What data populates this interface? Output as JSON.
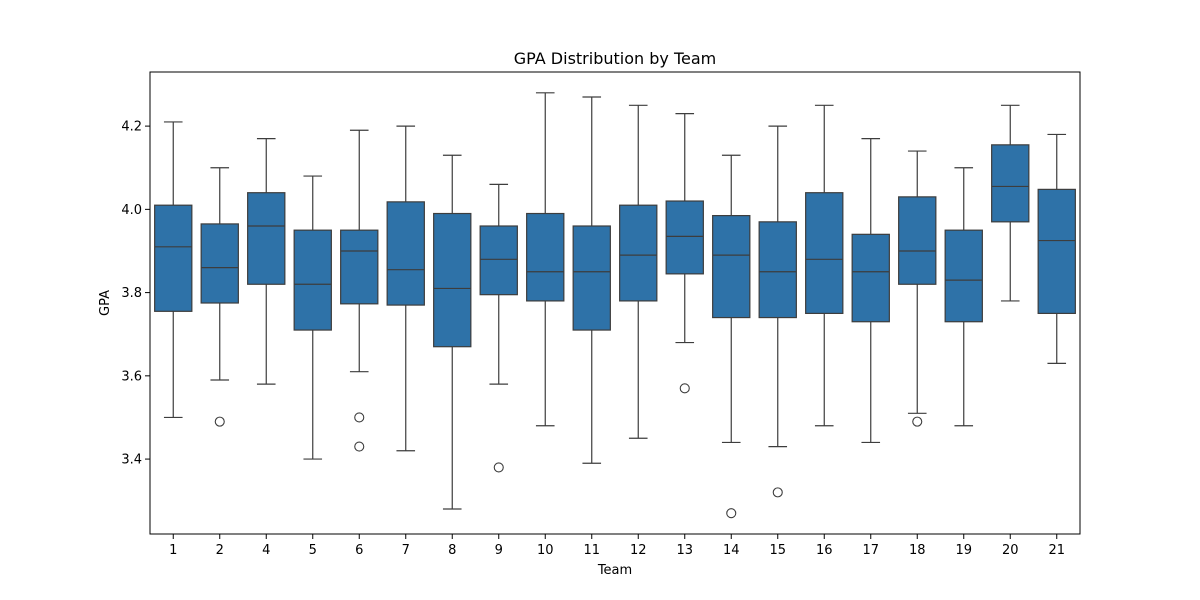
{
  "chart_data": {
    "type": "box",
    "title": "GPA Distribution by Team",
    "xlabel": "Team",
    "ylabel": "GPA",
    "ylim": [
      3.22,
      4.33
    ],
    "yticks": [
      "3.4",
      "3.6",
      "3.8",
      "4.0",
      "4.2"
    ],
    "grid": false,
    "legend": "none",
    "colors": {
      "box": "#2e72a8",
      "line": "#3d3d3d"
    },
    "categories": [
      "1",
      "2",
      "4",
      "5",
      "6",
      "7",
      "8",
      "9",
      "10",
      "11",
      "12",
      "13",
      "14",
      "15",
      "16",
      "17",
      "18",
      "19",
      "20",
      "21"
    ],
    "boxes": [
      {
        "category": "1",
        "whisker_low": 3.5,
        "q1": 3.755,
        "median": 3.91,
        "q3": 4.01,
        "whisker_high": 4.21,
        "outliers": []
      },
      {
        "category": "2",
        "whisker_low": 3.59,
        "q1": 3.775,
        "median": 3.86,
        "q3": 3.965,
        "whisker_high": 4.1,
        "outliers": [
          3.49
        ]
      },
      {
        "category": "4",
        "whisker_low": 3.58,
        "q1": 3.82,
        "median": 3.96,
        "q3": 4.04,
        "whisker_high": 4.17,
        "outliers": []
      },
      {
        "category": "5",
        "whisker_low": 3.4,
        "q1": 3.71,
        "median": 3.82,
        "q3": 3.95,
        "whisker_high": 4.08,
        "outliers": []
      },
      {
        "category": "6",
        "whisker_low": 3.61,
        "q1": 3.773,
        "median": 3.9,
        "q3": 3.95,
        "whisker_high": 4.19,
        "outliers": [
          3.5,
          3.43
        ]
      },
      {
        "category": "7",
        "whisker_low": 3.42,
        "q1": 3.77,
        "median": 3.855,
        "q3": 4.018,
        "whisker_high": 4.2,
        "outliers": []
      },
      {
        "category": "8",
        "whisker_low": 3.28,
        "q1": 3.67,
        "median": 3.81,
        "q3": 3.99,
        "whisker_high": 4.13,
        "outliers": []
      },
      {
        "category": "9",
        "whisker_low": 3.58,
        "q1": 3.795,
        "median": 3.88,
        "q3": 3.96,
        "whisker_high": 4.06,
        "outliers": [
          3.38
        ]
      },
      {
        "category": "10",
        "whisker_low": 3.48,
        "q1": 3.78,
        "median": 3.85,
        "q3": 3.99,
        "whisker_high": 4.28,
        "outliers": []
      },
      {
        "category": "11",
        "whisker_low": 3.39,
        "q1": 3.71,
        "median": 3.85,
        "q3": 3.96,
        "whisker_high": 4.27,
        "outliers": []
      },
      {
        "category": "12",
        "whisker_low": 3.45,
        "q1": 3.78,
        "median": 3.89,
        "q3": 4.01,
        "whisker_high": 4.25,
        "outliers": []
      },
      {
        "category": "13",
        "whisker_low": 3.68,
        "q1": 3.845,
        "median": 3.935,
        "q3": 4.02,
        "whisker_high": 4.23,
        "outliers": [
          3.57
        ]
      },
      {
        "category": "14",
        "whisker_low": 3.44,
        "q1": 3.74,
        "median": 3.89,
        "q3": 3.985,
        "whisker_high": 4.13,
        "outliers": [
          3.27
        ]
      },
      {
        "category": "15",
        "whisker_low": 3.43,
        "q1": 3.74,
        "median": 3.85,
        "q3": 3.97,
        "whisker_high": 4.2,
        "outliers": [
          3.32
        ]
      },
      {
        "category": "16",
        "whisker_low": 3.48,
        "q1": 3.75,
        "median": 3.88,
        "q3": 4.04,
        "whisker_high": 4.25,
        "outliers": []
      },
      {
        "category": "17",
        "whisker_low": 3.44,
        "q1": 3.73,
        "median": 3.85,
        "q3": 3.94,
        "whisker_high": 4.17,
        "outliers": []
      },
      {
        "category": "18",
        "whisker_low": 3.51,
        "q1": 3.82,
        "median": 3.9,
        "q3": 4.03,
        "whisker_high": 4.14,
        "outliers": [
          3.49
        ]
      },
      {
        "category": "19",
        "whisker_low": 3.48,
        "q1": 3.73,
        "median": 3.83,
        "q3": 3.95,
        "whisker_high": 4.1,
        "outliers": []
      },
      {
        "category": "20",
        "whisker_low": 3.78,
        "q1": 3.97,
        "median": 4.055,
        "q3": 4.155,
        "whisker_high": 4.25,
        "outliers": []
      },
      {
        "category": "21",
        "whisker_low": 3.63,
        "q1": 3.75,
        "median": 3.925,
        "q3": 4.048,
        "whisker_high": 4.18,
        "outliers": []
      }
    ]
  }
}
